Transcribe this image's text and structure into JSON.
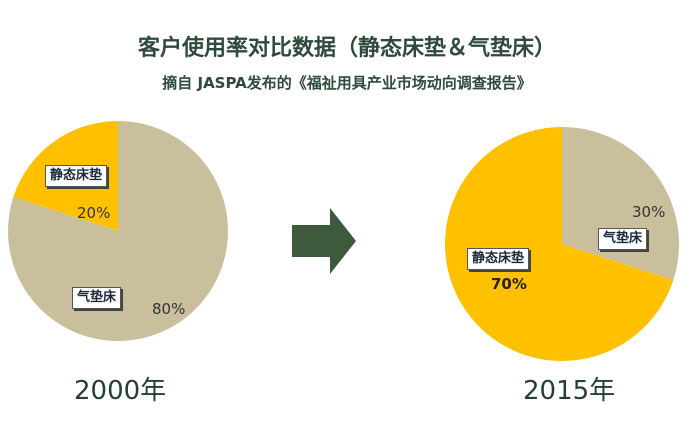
{
  "title": "客户使用率对比数据（静态床垫＆气垫床）",
  "subtitle": "摘自 JASPA发布的《福祉用具产业市场动向调查报告》",
  "colors": {
    "static_mattress": "#ffc000",
    "air_mattress": "#c9bf9c",
    "arrow": "#3d5a3d"
  },
  "chart_data": [
    {
      "type": "pie",
      "year_label": "2000年",
      "slices": [
        {
          "label": "静态床垫",
          "value": 20,
          "pct_label": "20%"
        },
        {
          "label": "气垫床",
          "value": 80,
          "pct_label": "80%"
        }
      ]
    },
    {
      "type": "pie",
      "year_label": "2015年",
      "slices": [
        {
          "label": "静态床垫",
          "value": 70,
          "pct_label": "70%"
        },
        {
          "label": "气垫床",
          "value": 30,
          "pct_label": "30%"
        }
      ]
    }
  ],
  "arrow_icon": "right-arrow-icon"
}
